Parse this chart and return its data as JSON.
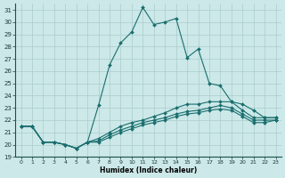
{
  "xlabel": "Humidex (Indice chaleur)",
  "bg_color": "#cce8e8",
  "grid_color": "#aacccc",
  "line_color": "#1a6e6e",
  "xlim": [
    -0.5,
    23.5
  ],
  "ylim": [
    19,
    31.5
  ],
  "yticks": [
    19,
    20,
    21,
    22,
    23,
    24,
    25,
    26,
    27,
    28,
    29,
    30,
    31
  ],
  "xticks": [
    0,
    1,
    2,
    3,
    4,
    5,
    6,
    7,
    8,
    9,
    10,
    11,
    12,
    13,
    14,
    15,
    16,
    17,
    18,
    19,
    20,
    21,
    22,
    23
  ],
  "lines": [
    {
      "x": [
        0,
        1,
        2,
        3,
        4,
        5,
        6,
        7,
        8,
        9,
        10,
        11,
        12,
        13,
        14,
        15,
        16,
        17,
        18,
        19,
        20,
        21,
        22,
        23
      ],
      "y": [
        21.5,
        21.5,
        20.2,
        20.2,
        20.0,
        19.7,
        20.2,
        23.2,
        26.5,
        28.3,
        29.2,
        31.2,
        29.8,
        30.0,
        30.3,
        27.1,
        27.8,
        25.0,
        24.8,
        23.5,
        22.8,
        22.2,
        22.2,
        22.2
      ]
    },
    {
      "x": [
        0,
        1,
        2,
        3,
        4,
        5,
        6,
        7,
        8,
        9,
        10,
        11,
        12,
        13,
        14,
        15,
        16,
        17,
        18,
        19,
        20,
        21,
        22,
        23
      ],
      "y": [
        21.5,
        21.5,
        20.2,
        20.2,
        20.0,
        19.7,
        20.2,
        20.5,
        21.0,
        21.5,
        21.8,
        22.0,
        22.3,
        22.6,
        23.0,
        23.3,
        23.3,
        23.5,
        23.5,
        23.5,
        23.3,
        22.8,
        22.2,
        22.2
      ]
    },
    {
      "x": [
        0,
        1,
        2,
        3,
        4,
        5,
        6,
        7,
        8,
        9,
        10,
        11,
        12,
        13,
        14,
        15,
        16,
        17,
        18,
        19,
        20,
        21,
        22,
        23
      ],
      "y": [
        21.5,
        21.5,
        20.2,
        20.2,
        20.0,
        19.7,
        20.2,
        20.3,
        20.8,
        21.2,
        21.5,
        21.8,
        22.0,
        22.2,
        22.5,
        22.7,
        22.8,
        23.0,
        23.2,
        23.0,
        22.5,
        22.0,
        22.0,
        22.0
      ]
    },
    {
      "x": [
        0,
        1,
        2,
        3,
        4,
        5,
        6,
        7,
        8,
        9,
        10,
        11,
        12,
        13,
        14,
        15,
        16,
        17,
        18,
        19,
        20,
        21,
        22,
        23
      ],
      "y": [
        21.5,
        21.5,
        20.2,
        20.2,
        20.0,
        19.7,
        20.2,
        20.2,
        20.6,
        21.0,
        21.3,
        21.6,
        21.8,
        22.0,
        22.3,
        22.5,
        22.6,
        22.8,
        22.9,
        22.8,
        22.3,
        21.8,
        21.8,
        22.0
      ]
    }
  ]
}
